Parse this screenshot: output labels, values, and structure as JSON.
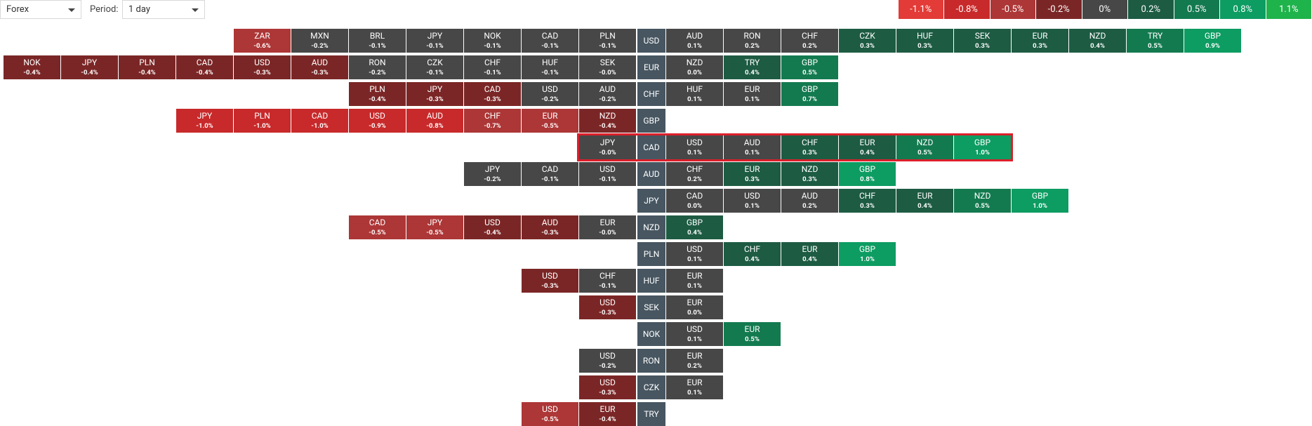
{
  "toolbar": {
    "market": "Forex",
    "period_label": "Period:",
    "period": "1 day"
  },
  "legend": [
    {
      "label": "-1.1%",
      "color": "#e33b37"
    },
    {
      "label": "-0.8%",
      "color": "#c8292a"
    },
    {
      "label": "-0.5%",
      "color": "#ad3636"
    },
    {
      "label": "-0.2%",
      "color": "#7b2626"
    },
    {
      "label": "0%",
      "color": "#474747"
    },
    {
      "label": "0.2%",
      "color": "#1d5b43"
    },
    {
      "label": "0.5%",
      "color": "#137a4f"
    },
    {
      "label": "0.8%",
      "color": "#0d9c62"
    },
    {
      "label": "1.1%",
      "color": "#1fb34b"
    }
  ],
  "rows": [
    {
      "base": "USD",
      "left": [
        {
          "code": "ZAR",
          "change": "-0.6%"
        },
        {
          "code": "MXN",
          "change": "-0.2%"
        },
        {
          "code": "BRL",
          "change": "-0.1%"
        },
        {
          "code": "JPY",
          "change": "-0.1%"
        },
        {
          "code": "NOK",
          "change": "-0.1%"
        },
        {
          "code": "CAD",
          "change": "-0.1%"
        },
        {
          "code": "PLN",
          "change": "-0.1%"
        }
      ],
      "right": [
        {
          "code": "AUD",
          "change": "0.1%"
        },
        {
          "code": "RON",
          "change": "0.2%"
        },
        {
          "code": "CHF",
          "change": "0.2%"
        },
        {
          "code": "CZK",
          "change": "0.3%"
        },
        {
          "code": "HUF",
          "change": "0.3%"
        },
        {
          "code": "SEK",
          "change": "0.3%"
        },
        {
          "code": "EUR",
          "change": "0.3%"
        },
        {
          "code": "NZD",
          "change": "0.4%"
        },
        {
          "code": "TRY",
          "change": "0.5%"
        },
        {
          "code": "GBP",
          "change": "0.9%"
        }
      ]
    },
    {
      "base": "EUR",
      "left": [
        {
          "code": "NOK",
          "change": "-0.4%"
        },
        {
          "code": "JPY",
          "change": "-0.4%"
        },
        {
          "code": "PLN",
          "change": "-0.4%"
        },
        {
          "code": "CAD",
          "change": "-0.4%"
        },
        {
          "code": "USD",
          "change": "-0.3%"
        },
        {
          "code": "AUD",
          "change": "-0.3%"
        },
        {
          "code": "RON",
          "change": "-0.2%"
        },
        {
          "code": "CZK",
          "change": "-0.1%"
        },
        {
          "code": "CHF",
          "change": "-0.1%"
        },
        {
          "code": "HUF",
          "change": "-0.1%"
        },
        {
          "code": "SEK",
          "change": "-0.0%"
        }
      ],
      "right": [
        {
          "code": "NZD",
          "change": "0.0%"
        },
        {
          "code": "TRY",
          "change": "0.4%"
        },
        {
          "code": "GBP",
          "change": "0.5%"
        }
      ]
    },
    {
      "base": "CHF",
      "left": [
        {
          "code": "PLN",
          "change": "-0.4%"
        },
        {
          "code": "JPY",
          "change": "-0.3%"
        },
        {
          "code": "CAD",
          "change": "-0.3%"
        },
        {
          "code": "USD",
          "change": "-0.2%"
        },
        {
          "code": "AUD",
          "change": "-0.2%"
        }
      ],
      "right": [
        {
          "code": "HUF",
          "change": "0.1%"
        },
        {
          "code": "EUR",
          "change": "0.1%"
        },
        {
          "code": "GBP",
          "change": "0.7%"
        }
      ]
    },
    {
      "base": "GBP",
      "left": [
        {
          "code": "JPY",
          "change": "-1.0%"
        },
        {
          "code": "PLN",
          "change": "-1.0%"
        },
        {
          "code": "CAD",
          "change": "-1.0%"
        },
        {
          "code": "USD",
          "change": "-0.9%"
        },
        {
          "code": "AUD",
          "change": "-0.8%"
        },
        {
          "code": "CHF",
          "change": "-0.7%"
        },
        {
          "code": "EUR",
          "change": "-0.5%"
        },
        {
          "code": "NZD",
          "change": "-0.4%"
        }
      ],
      "right": []
    },
    {
      "base": "CAD",
      "highlighted": true,
      "left": [
        {
          "code": "JPY",
          "change": "-0.0%"
        }
      ],
      "right": [
        {
          "code": "USD",
          "change": "0.1%"
        },
        {
          "code": "AUD",
          "change": "0.1%"
        },
        {
          "code": "CHF",
          "change": "0.3%"
        },
        {
          "code": "EUR",
          "change": "0.4%"
        },
        {
          "code": "NZD",
          "change": "0.5%"
        },
        {
          "code": "GBP",
          "change": "1.0%"
        }
      ]
    },
    {
      "base": "AUD",
      "left": [
        {
          "code": "JPY",
          "change": "-0.2%"
        },
        {
          "code": "CAD",
          "change": "-0.1%"
        },
        {
          "code": "USD",
          "change": "-0.1%"
        }
      ],
      "right": [
        {
          "code": "CHF",
          "change": "0.2%"
        },
        {
          "code": "EUR",
          "change": "0.3%"
        },
        {
          "code": "NZD",
          "change": "0.3%"
        },
        {
          "code": "GBP",
          "change": "0.8%"
        }
      ]
    },
    {
      "base": "JPY",
      "left": [],
      "right": [
        {
          "code": "CAD",
          "change": "0.0%"
        },
        {
          "code": "USD",
          "change": "0.1%"
        },
        {
          "code": "AUD",
          "change": "0.2%"
        },
        {
          "code": "CHF",
          "change": "0.3%"
        },
        {
          "code": "EUR",
          "change": "0.4%"
        },
        {
          "code": "NZD",
          "change": "0.5%"
        },
        {
          "code": "GBP",
          "change": "1.0%"
        }
      ]
    },
    {
      "base": "NZD",
      "left": [
        {
          "code": "CAD",
          "change": "-0.5%"
        },
        {
          "code": "JPY",
          "change": "-0.5%"
        },
        {
          "code": "USD",
          "change": "-0.4%"
        },
        {
          "code": "AUD",
          "change": "-0.3%"
        },
        {
          "code": "EUR",
          "change": "-0.0%"
        }
      ],
      "right": [
        {
          "code": "GBP",
          "change": "0.4%"
        }
      ]
    },
    {
      "base": "PLN",
      "left": [],
      "right": [
        {
          "code": "USD",
          "change": "0.1%"
        },
        {
          "code": "CHF",
          "change": "0.4%"
        },
        {
          "code": "EUR",
          "change": "0.4%"
        },
        {
          "code": "GBP",
          "change": "1.0%"
        }
      ]
    },
    {
      "base": "HUF",
      "left": [
        {
          "code": "USD",
          "change": "-0.3%"
        },
        {
          "code": "CHF",
          "change": "-0.1%"
        }
      ],
      "right": [
        {
          "code": "EUR",
          "change": "0.1%"
        }
      ]
    },
    {
      "base": "SEK",
      "left": [
        {
          "code": "USD",
          "change": "-0.3%"
        }
      ],
      "right": [
        {
          "code": "EUR",
          "change": "0.0%"
        }
      ]
    },
    {
      "base": "NOK",
      "left": [],
      "right": [
        {
          "code": "USD",
          "change": "0.1%"
        },
        {
          "code": "EUR",
          "change": "0.5%"
        }
      ]
    },
    {
      "base": "RON",
      "left": [
        {
          "code": "USD",
          "change": "-0.2%"
        }
      ],
      "right": [
        {
          "code": "EUR",
          "change": "0.2%"
        }
      ]
    },
    {
      "base": "CZK",
      "left": [
        {
          "code": "USD",
          "change": "-0.3%"
        }
      ],
      "right": [
        {
          "code": "EUR",
          "change": "0.1%"
        }
      ]
    },
    {
      "base": "TRY",
      "left": [
        {
          "code": "USD",
          "change": "-0.5%"
        },
        {
          "code": "EUR",
          "change": "-0.4%"
        }
      ],
      "right": []
    }
  ]
}
